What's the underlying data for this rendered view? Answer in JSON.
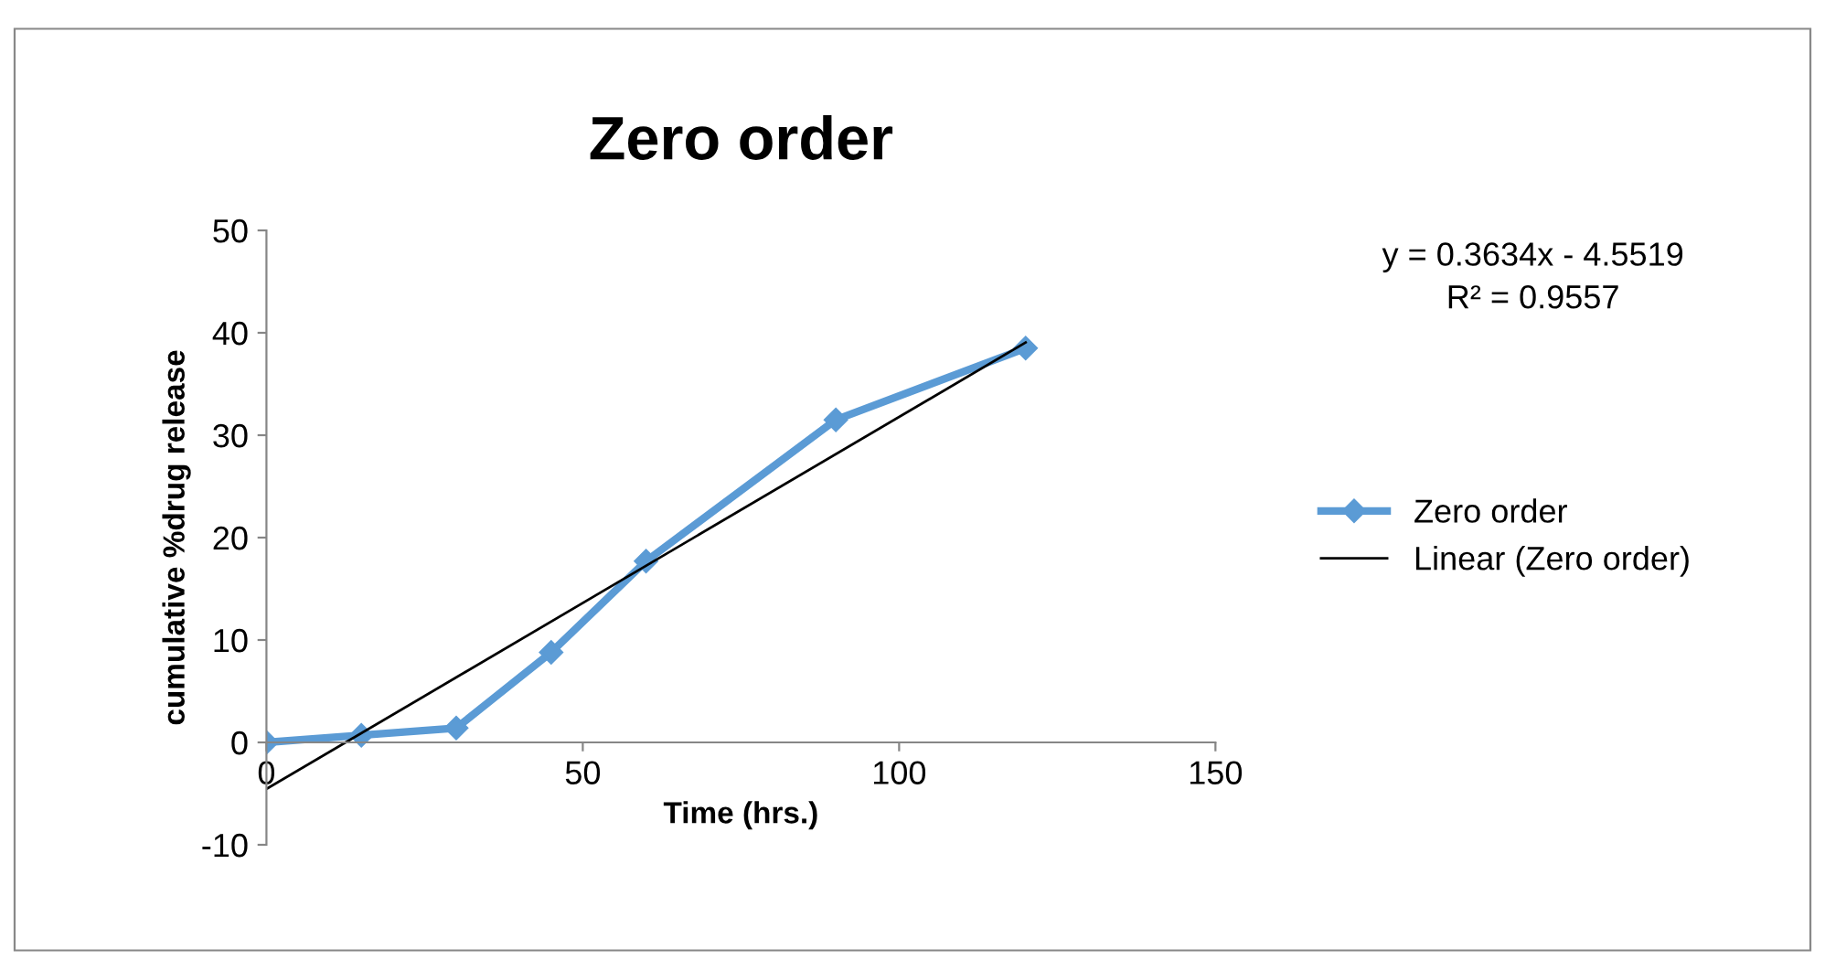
{
  "chart_data": {
    "type": "line",
    "title": "Zero order",
    "xlabel": "Time (hrs.)",
    "ylabel": "cumulative %drug release",
    "xlim": [
      0,
      150
    ],
    "xticks": [
      0,
      50,
      100,
      150
    ],
    "ylim": [
      -10,
      50
    ],
    "yticks": [
      -10,
      0,
      10,
      20,
      30,
      40,
      50
    ],
    "series": [
      {
        "name": "Zero order",
        "color": "#5b9bd5",
        "x": [
          0,
          15,
          30,
          45,
          60,
          90,
          120
        ],
        "values": [
          0,
          0.7,
          1.4,
          8.8,
          17.7,
          31.5,
          38.5
        ],
        "marker": "diamond",
        "line_style": "solid"
      },
      {
        "name": "Linear (Zero order)",
        "color": "#000000",
        "type": "line",
        "x": [
          0,
          120
        ],
        "values": [
          -4.5519,
          39.0561
        ],
        "marker": "none",
        "line_style": "solid"
      }
    ],
    "annotations": [
      "y = 0.3634x - 4.5519\nR² = 0.9557"
    ],
    "grid": false,
    "legend": "right"
  }
}
